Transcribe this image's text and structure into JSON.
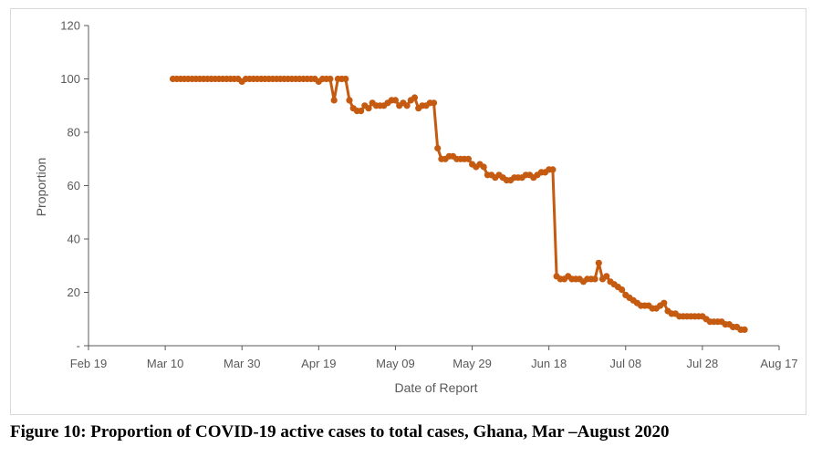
{
  "caption": "Figure 10: Proportion of COVID-19 active cases to total cases, Ghana, Mar –August 2020",
  "chart_data": {
    "type": "line",
    "title": "",
    "xlabel": "Date of Report",
    "ylabel": "Proportion",
    "x_axis": {
      "type": "date",
      "min": "2020-02-19",
      "max": "2020-08-17",
      "ticks": [
        "2020-02-19",
        "2020-03-10",
        "2020-03-30",
        "2020-04-19",
        "2020-05-09",
        "2020-05-29",
        "2020-06-18",
        "2020-07-08",
        "2020-07-28",
        "2020-08-17"
      ],
      "tick_labels": [
        "Feb 19",
        "Mar 10",
        "Mar 30",
        "Apr 19",
        "May 09",
        "May 29",
        "Jun 18",
        "Jul 08",
        "Jul 28",
        "Aug 17"
      ]
    },
    "y_axis": {
      "min": 0,
      "max": 120,
      "ticks": [
        0,
        20,
        40,
        60,
        80,
        100,
        120
      ],
      "tick_labels": [
        "-",
        "20",
        "40",
        "60",
        "80",
        "100",
        "120"
      ]
    },
    "grid": false,
    "legend": "none",
    "series": [
      {
        "color": "#c55a11",
        "x": [
          "2020-03-12",
          "2020-03-13",
          "2020-03-14",
          "2020-03-15",
          "2020-03-16",
          "2020-03-17",
          "2020-03-18",
          "2020-03-19",
          "2020-03-20",
          "2020-03-21",
          "2020-03-22",
          "2020-03-23",
          "2020-03-24",
          "2020-03-25",
          "2020-03-26",
          "2020-03-27",
          "2020-03-28",
          "2020-03-29",
          "2020-03-30",
          "2020-03-31",
          "2020-04-01",
          "2020-04-02",
          "2020-04-03",
          "2020-04-04",
          "2020-04-05",
          "2020-04-06",
          "2020-04-07",
          "2020-04-08",
          "2020-04-09",
          "2020-04-10",
          "2020-04-11",
          "2020-04-12",
          "2020-04-13",
          "2020-04-14",
          "2020-04-15",
          "2020-04-16",
          "2020-04-17",
          "2020-04-18",
          "2020-04-19",
          "2020-04-20",
          "2020-04-21",
          "2020-04-22",
          "2020-04-23",
          "2020-04-24",
          "2020-04-25",
          "2020-04-26",
          "2020-04-27",
          "2020-04-28",
          "2020-04-29",
          "2020-04-30",
          "2020-05-01",
          "2020-05-02",
          "2020-05-03",
          "2020-05-04",
          "2020-05-05",
          "2020-05-06",
          "2020-05-07",
          "2020-05-08",
          "2020-05-09",
          "2020-05-10",
          "2020-05-11",
          "2020-05-12",
          "2020-05-13",
          "2020-05-14",
          "2020-05-15",
          "2020-05-16",
          "2020-05-17",
          "2020-05-18",
          "2020-05-19",
          "2020-05-20",
          "2020-05-21",
          "2020-05-22",
          "2020-05-23",
          "2020-05-24",
          "2020-05-25",
          "2020-05-26",
          "2020-05-27",
          "2020-05-28",
          "2020-05-29",
          "2020-05-30",
          "2020-05-31",
          "2020-06-01",
          "2020-06-02",
          "2020-06-03",
          "2020-06-04",
          "2020-06-05",
          "2020-06-06",
          "2020-06-07",
          "2020-06-08",
          "2020-06-09",
          "2020-06-10",
          "2020-06-11",
          "2020-06-12",
          "2020-06-13",
          "2020-06-14",
          "2020-06-15",
          "2020-06-16",
          "2020-06-17",
          "2020-06-18",
          "2020-06-19",
          "2020-06-20",
          "2020-06-21",
          "2020-06-22",
          "2020-06-23",
          "2020-06-24",
          "2020-06-25",
          "2020-06-26",
          "2020-06-27",
          "2020-06-28",
          "2020-06-29",
          "2020-06-30",
          "2020-07-01",
          "2020-07-02",
          "2020-07-03",
          "2020-07-04",
          "2020-07-05",
          "2020-07-06",
          "2020-07-07",
          "2020-07-08",
          "2020-07-09",
          "2020-07-10",
          "2020-07-11",
          "2020-07-12",
          "2020-07-13",
          "2020-07-14",
          "2020-07-15",
          "2020-07-16",
          "2020-07-17",
          "2020-07-18",
          "2020-07-19",
          "2020-07-20",
          "2020-07-21",
          "2020-07-22",
          "2020-07-23",
          "2020-07-24",
          "2020-07-25",
          "2020-07-26",
          "2020-07-27",
          "2020-07-28",
          "2020-07-29",
          "2020-07-30",
          "2020-07-31",
          "2020-08-01",
          "2020-08-02",
          "2020-08-03",
          "2020-08-04",
          "2020-08-05",
          "2020-08-06",
          "2020-08-07",
          "2020-08-08"
        ],
        "y": [
          100,
          100,
          100,
          100,
          100,
          100,
          100,
          100,
          100,
          100,
          100,
          100,
          100,
          100,
          100,
          100,
          100,
          100,
          99,
          100,
          100,
          100,
          100,
          100,
          100,
          100,
          100,
          100,
          100,
          100,
          100,
          100,
          100,
          100,
          100,
          100,
          100,
          100,
          99,
          100,
          100,
          100,
          92,
          100,
          100,
          100,
          92,
          89,
          88,
          88,
          90,
          89,
          91,
          90,
          90,
          90,
          91,
          92,
          92,
          90,
          91,
          90,
          92,
          93,
          89,
          90,
          90,
          91,
          91,
          74,
          70,
          70,
          71,
          71,
          70,
          70,
          70,
          70,
          68,
          67,
          68,
          67,
          64,
          64,
          63,
          64,
          63,
          62,
          62,
          63,
          63,
          63,
          64,
          64,
          63,
          64,
          65,
          65,
          66,
          66,
          26,
          25,
          25,
          26,
          25,
          25,
          25,
          24,
          25,
          25,
          25,
          31,
          25,
          26,
          24,
          23,
          22,
          21,
          19,
          18,
          17,
          16,
          15,
          15,
          15,
          14,
          14,
          15,
          16,
          13,
          12,
          12,
          11,
          11,
          11,
          11,
          11,
          11,
          11,
          10,
          9,
          9,
          9,
          9,
          8,
          8,
          7,
          7,
          6,
          6
        ]
      }
    ]
  }
}
